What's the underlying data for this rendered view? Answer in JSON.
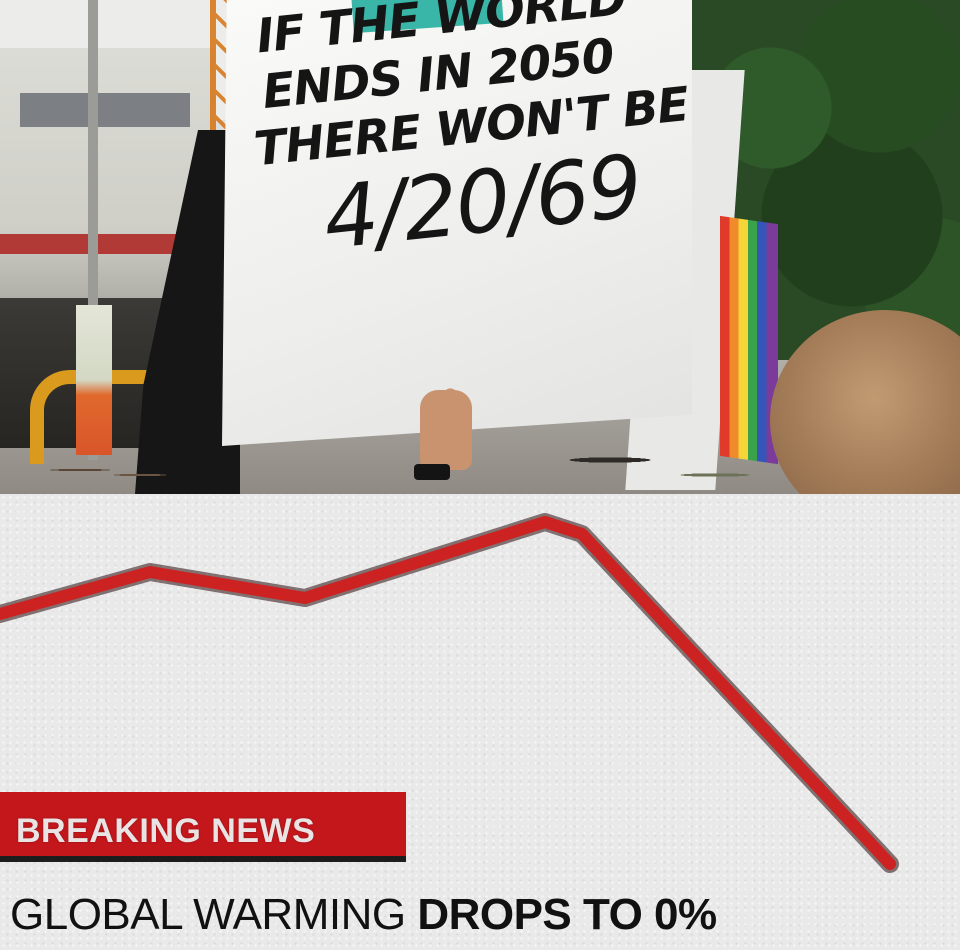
{
  "sign": {
    "lines": [
      "IF THE WORLD",
      "ENDS IN 2050",
      "THERE WON'T BE",
      "4/20/69"
    ]
  },
  "news": {
    "banner": "BREAKING NEWS",
    "headline_regular": "GLOBAL WARMING",
    "headline_bold": "DROPS TO 0%",
    "banner_color": "#c4171c",
    "line_color": "#cc2222"
  },
  "icons": [
    "black-flag",
    "rainbow-flag"
  ]
}
